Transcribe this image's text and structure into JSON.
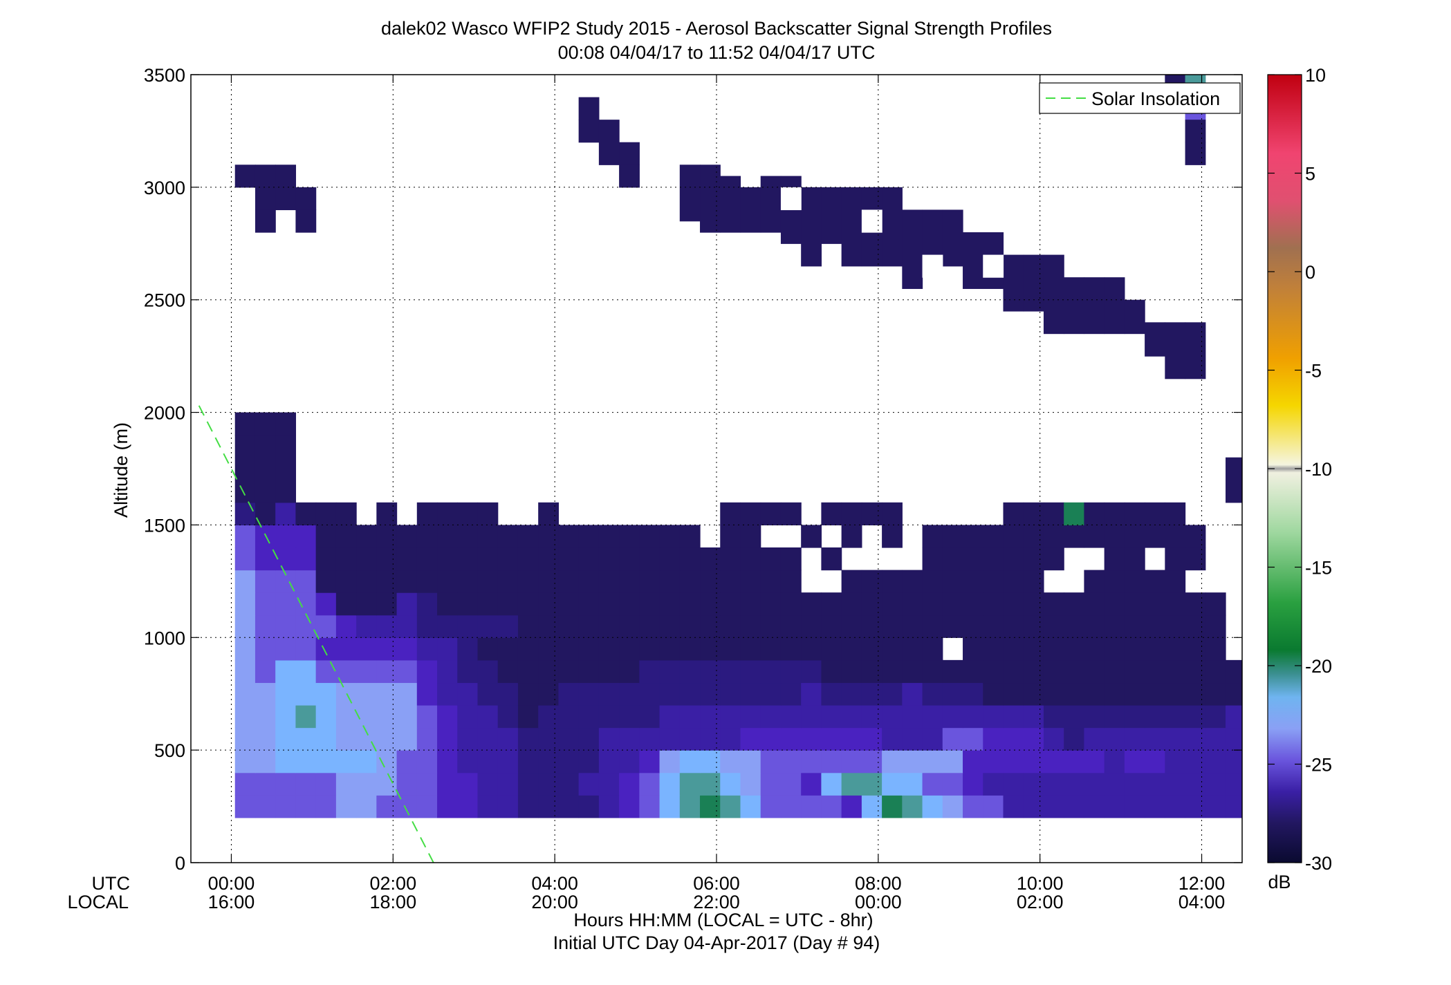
{
  "title_line1": "dalek02 Wasco WFIP2 Study 2015 - Aerosol Backscatter Signal Strength Profiles",
  "title_line2": "00:08 04/04/17 to 11:52 04/04/17  UTC",
  "ylabel": "Altitude (m)",
  "xlabel": "Hours HH:MM  (LOCAL = UTC - 8hr)",
  "xlabel2": "Initial UTC Day 04-Apr-2017 (Day # 94)",
  "utc_row_label": "UTC",
  "local_row_label": "LOCAL",
  "legend_label": "Solar Insolation",
  "colorbar_unit": "dB",
  "x_ticks_utc": [
    "00:00",
    "02:00",
    "04:00",
    "06:00",
    "08:00",
    "10:00",
    "12:00"
  ],
  "x_ticks_local": [
    "16:00",
    "18:00",
    "20:00",
    "22:00",
    "00:00",
    "02:00",
    "04:00"
  ],
  "y_ticks": [
    "0",
    "500",
    "1000",
    "1500",
    "2000",
    "2500",
    "3000",
    "3500"
  ],
  "colorbar_ticks": [
    "10",
    "5",
    "0",
    "-5",
    "-10",
    "-15",
    "-20",
    "-25",
    "-30"
  ],
  "colors": {
    "solar_line": "#44dd44",
    "empty": "#ffffff",
    "c_neg30": "#0a0a30",
    "c_neg28": "#221760",
    "c_neg27": "#2b1a80",
    "c_neg26": "#3a1fa5",
    "c_neg25": "#4a22c0",
    "c_neg24": "#6a55dd",
    "c_neg23": "#8aa0f5",
    "c_neg22": "#7ab4ff",
    "c_neg21": "#4a9a9a",
    "c_neg20": "#1a8055",
    "c_neg10": "#f2f2e8",
    "c_neg5": "#f5c000",
    "c_0": "#c0803a",
    "c_5": "#f04470",
    "c_10": "#c80000"
  },
  "chart_data": {
    "type": "heatmap",
    "title": "dalek02 Wasco WFIP2 Study 2015 - Aerosol Backscatter Signal Strength Profiles",
    "subtitle": "00:08 04/04/17 to 11:52 04/04/17  UTC",
    "xlabel": "Hours HH:MM  (LOCAL = UTC - 8hr)",
    "ylabel": "Altitude (m)",
    "x_unit": "hours UTC since 00:00 04/04/17",
    "xlim": [
      -0.5,
      12.5
    ],
    "ylim": [
      0,
      3500
    ],
    "zlim": [
      -30,
      10
    ],
    "z_unit": "dB",
    "grid": true,
    "legend_position": "top-right",
    "time_start_hr": 0.17,
    "time_step_hr": 0.25,
    "alt_start_m": 200,
    "alt_step_m": 100,
    "row_order": "bottom (200 m) to top (3500 m)",
    "code_key": {
      ".": null,
      "A": -28,
      "B": -27,
      "C": -26,
      "D": -25,
      "E": -24,
      "F": -23,
      "G": -22,
      "H": -21,
      "I": -20
    },
    "rows": [
      "EEEEEFFEEEDDCCBBBBCDEGHIHGEEEEDGIHGFEECCCCCCCCCCCCCCCC",
      "EEEEEFFFEEDDCCBBBCCDEGHHGFEEDGHHGGEEDCCCCCCCCCCCCCCCCC",
      "FFGGGGGFEEDCCCBBBBCCDFGGFFEEEEEEFFFFDDDDDDDCDDCCCCCCCC",
      "FFGGGFFFFEDCCCBBBBCCCCCCCDDDDDDDCCCEEDDDCBCCCCCCCCCCCC",
      "FFGHGFFFFEDCCBABBBBBBCCCCCCCCCCCCCCCCCCCBBBBBBBBBCBBBB",
      "FFGGGFFFFDCCBBAABBBBBBBBBBBBCBBBBCBBBAAAAAAAAAAAAAAAAA",
      "FEGGEEEEEDCBBAAAAAAABBBBBBBBBAAAAAAAAAAAAAAAAAAAAAAAAA",
      "FEEEDDDDDCCBAAAAAAAAAAAAAAAAAAAAAAA.AAAAAAAAAAAAA.AAAA",
      "FEEEEDCCCBBBBBAAAAAAAAAAAAAAAAAAAAAAAAAAAAAAAAAAA..AAA",
      "FEEEDAAACBAAAAAAAAAAAAAAAAAAAAAAAAAAAAAAAAAAAAAAA.....",
      "FEEEAAAAAAAAAAAAAAAAAAAAAAAA..AAAAAAAAAA..AAAAA.......",
      "EDDDAAAAAAAAAAAAAAAAAAAAAAAA.A....AAAAAAA..AA.AA......",
      "EDDDAAAAAAAAAAAAAAAAAAA.AA..A.A.A.AAAAAAAAAAAAAA......",
      "BACAAA.A.AAAA..A........AAAA.AAAA.....AAAIAAAAA...AA..",
      "AAA..............................................AA...",
      "AAA..............................................AA...",
      "AAA...................................................",
      "AAA...................................................",
      "A.....................................................",
      "......................................................",
      "......................................................",
      ".....................................................A",
      ".....................................................A",
      ".....................................................AA",
      "...................................................AAA",
      "..................................................AAA.",
      "..................................................AAAA",
      ".......................................AAAA...........",
      "..............................AAAAAAAAAAA.............",
      "......................AAAAAAAAAAAAAAAAA...............",
      "........................AAAAAAAAAAAAAA................",
      ".A...................AAAAAAAAAAAAAAAA.................",
      "..AAAA...............AA....AA..........................",
      ".AAAA...............AA...................................",
      ".......................................................",
      "......................................................",
      "......................................................",
      ".......................................................",
      ".......................................................",
      ".......................................................",
      ".......................................................",
      ".......................................................",
      "......................................................."
    ],
    "top_right_cells": [
      {
        "t_hr": 11.67,
        "alt_m": 3450,
        "db": -28
      },
      {
        "t_hr": 11.92,
        "alt_m": 3450,
        "db": -21
      },
      {
        "t_hr": 11.92,
        "alt_m": 3350,
        "db": -24
      },
      {
        "t_hr": 11.92,
        "alt_m": 3250,
        "db": -28
      },
      {
        "t_hr": 11.92,
        "alt_m": 3150,
        "db": -28
      }
    ],
    "upper_layer_cells": [
      {
        "t_hr": 0.17,
        "alt_m": 3050,
        "db": -28
      },
      {
        "t_hr": 0.42,
        "alt_m": 3050,
        "db": -28
      },
      {
        "t_hr": 0.67,
        "alt_m": 3050,
        "db": -28
      },
      {
        "t_hr": 0.42,
        "alt_m": 2950,
        "db": -28
      },
      {
        "t_hr": 0.67,
        "alt_m": 2950,
        "db": -28
      },
      {
        "t_hr": 0.92,
        "alt_m": 2950,
        "db": -28
      },
      {
        "t_hr": 0.42,
        "alt_m": 2850,
        "db": -28
      },
      {
        "t_hr": 0.92,
        "alt_m": 2850,
        "db": -28
      },
      {
        "t_hr": 4.42,
        "alt_m": 3350,
        "db": -28
      },
      {
        "t_hr": 4.42,
        "alt_m": 3250,
        "db": -28
      },
      {
        "t_hr": 4.67,
        "alt_m": 3250,
        "db": -28
      },
      {
        "t_hr": 4.67,
        "alt_m": 3150,
        "db": -28
      },
      {
        "t_hr": 4.92,
        "alt_m": 3150,
        "db": -28
      },
      {
        "t_hr": 4.92,
        "alt_m": 3050,
        "db": -28
      }
    ],
    "solar_insolation": {
      "name": "Solar Insolation",
      "x": [
        -0.4,
        2.5
      ],
      "y": [
        2030,
        0
      ]
    }
  }
}
